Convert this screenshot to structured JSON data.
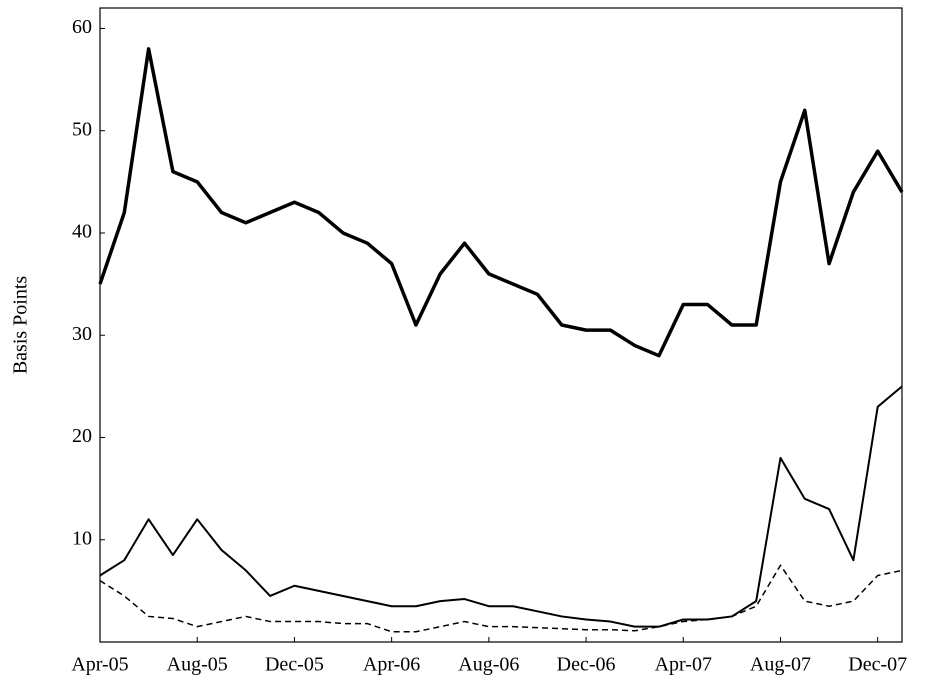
{
  "chart_data": {
    "type": "line",
    "y_label": "Basis Points",
    "x": [
      "2005-04",
      "2005-05",
      "2005-06",
      "2005-07",
      "2005-08",
      "2005-09",
      "2005-10",
      "2005-11",
      "2005-12",
      "2006-01",
      "2006-02",
      "2006-03",
      "2006-04",
      "2006-05",
      "2006-06",
      "2006-07",
      "2006-08",
      "2006-09",
      "2006-10",
      "2006-11",
      "2006-12",
      "2007-01",
      "2007-02",
      "2007-03",
      "2007-04",
      "2007-05",
      "2007-06",
      "2007-07",
      "2007-08",
      "2007-09",
      "2007-10",
      "2007-11",
      "2007-12",
      "2008-01"
    ],
    "series": [
      {
        "color": "#000000",
        "line_width": 3.5,
        "dash": "solid",
        "values": [
          35,
          42,
          58,
          46,
          45,
          42,
          41,
          42,
          43,
          42,
          40,
          39,
          37,
          31,
          36,
          39,
          36,
          35,
          34,
          31,
          30.5,
          30.5,
          29,
          28,
          33,
          33,
          31,
          31,
          45,
          52,
          37,
          44,
          48,
          44
        ]
      },
      {
        "color": "#000000",
        "line_width": 2,
        "dash": "solid",
        "values": [
          6.5,
          8,
          12,
          8.5,
          12,
          9,
          7,
          4.5,
          5.5,
          5,
          4.5,
          4,
          3.5,
          3.5,
          4,
          4.2,
          3.5,
          3.5,
          3,
          2.5,
          2.2,
          2,
          1.5,
          1.5,
          2.2,
          2.2,
          2.5,
          4,
          18,
          14,
          13,
          8,
          23,
          25
        ]
      },
      {
        "color": "#000000",
        "line_width": 1.5,
        "dash": "dashed",
        "values": [
          6,
          4.5,
          2.5,
          2.3,
          1.5,
          2,
          2.5,
          2,
          2,
          2,
          1.8,
          1.8,
          1,
          1,
          1.5,
          2,
          1.5,
          1.5,
          1.4,
          1.3,
          1.2,
          1.2,
          1.1,
          1.5,
          2,
          2.2,
          2.5,
          3.5,
          7.5,
          4,
          3.5,
          4,
          6.5,
          7
        ]
      }
    ],
    "xlim": [
      "2005-04",
      "2008-01"
    ],
    "xticks": [
      {
        "value": "2005-04",
        "label": "Apr-05"
      },
      {
        "value": "2005-08",
        "label": "Aug-05"
      },
      {
        "value": "2005-12",
        "label": "Dec-05"
      },
      {
        "value": "2006-04",
        "label": "Apr-06"
      },
      {
        "value": "2006-08",
        "label": "Aug-06"
      },
      {
        "value": "2006-12",
        "label": "Dec-06"
      },
      {
        "value": "2007-04",
        "label": "Apr-07"
      },
      {
        "value": "2007-08",
        "label": "Aug-07"
      },
      {
        "value": "2007-12",
        "label": "Dec-07"
      }
    ],
    "ylim": [
      0,
      62
    ],
    "yticks": [
      10,
      20,
      30,
      40,
      50,
      60
    ],
    "grid": false
  }
}
